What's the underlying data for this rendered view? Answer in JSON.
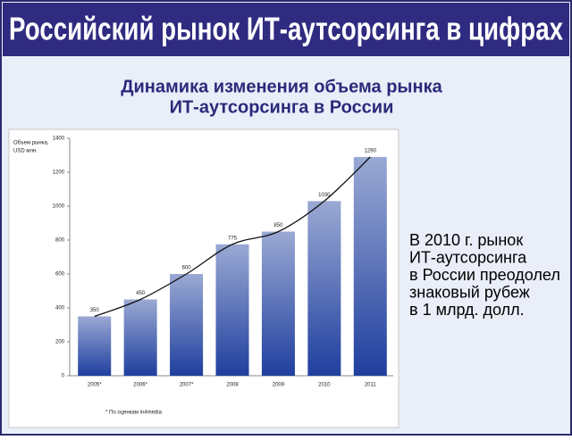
{
  "header": {
    "title": "Российский рынок ИТ-аутсорсинга в цифрах"
  },
  "chart_data": {
    "type": "bar",
    "title": [
      "Динамика изменения объема рынка",
      "ИТ-аутсорсинга в России"
    ],
    "ylabel": [
      "Объем рынка,",
      "USD млн."
    ],
    "categories": [
      "2005*",
      "2006*",
      "2007*",
      "2008",
      "2009",
      "2010",
      "2011"
    ],
    "values": [
      350,
      450,
      600,
      775,
      850,
      1030,
      1290
    ],
    "color": "#1f3f9e",
    "trend_line": true,
    "ylim": [
      0,
      1400
    ],
    "yticks": [
      0,
      200,
      400,
      600,
      800,
      1000,
      1200,
      1400
    ],
    "note": "* По оценкам in4media"
  },
  "sidebar": {
    "lines": [
      "В 2010 г. рынок",
      "ИТ-аутсорсинга",
      "в России преодолел",
      "знаковый рубеж",
      "в 1 млрд. долл."
    ]
  }
}
